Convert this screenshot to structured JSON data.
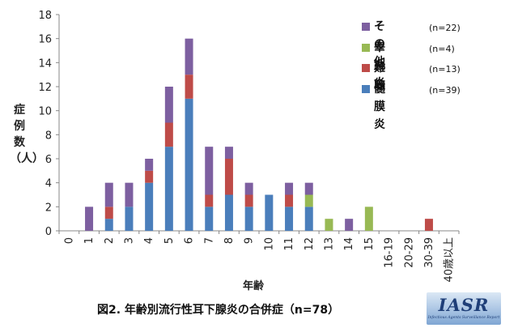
{
  "chart_data": {
    "type": "bar",
    "stacked": true,
    "categories": [
      "0",
      "1",
      "2",
      "3",
      "4",
      "5",
      "6",
      "7",
      "8",
      "9",
      "10",
      "11",
      "12",
      "13",
      "14",
      "15",
      "16-19",
      "20-29",
      "30-39",
      "40歳以上"
    ],
    "series": [
      {
        "name": "髄膜炎",
        "count_label": "(n=39)",
        "color": "#4a7ebb",
        "values": [
          0,
          0,
          1,
          2,
          4,
          7,
          11,
          2,
          3,
          2,
          3,
          2,
          2,
          0,
          0,
          0,
          0,
          0,
          0,
          0
        ]
      },
      {
        "name": "難聴",
        "count_label": "(n=13)",
        "color": "#be4b48",
        "values": [
          0,
          0,
          1,
          0,
          1,
          2,
          2,
          1,
          3,
          1,
          0,
          1,
          0,
          0,
          0,
          0,
          0,
          0,
          1,
          0
        ]
      },
      {
        "name": "睾丸炎",
        "count_label": "(n=4)",
        "color": "#98b954",
        "values": [
          0,
          0,
          0,
          0,
          0,
          0,
          0,
          0,
          0,
          0,
          0,
          0,
          1,
          1,
          0,
          2,
          0,
          0,
          0,
          0
        ]
      },
      {
        "name": "その他",
        "count_label": "(n=22)",
        "color": "#7d5fa0",
        "values": [
          0,
          2,
          2,
          2,
          1,
          3,
          3,
          4,
          1,
          1,
          0,
          1,
          1,
          0,
          1,
          0,
          0,
          0,
          0,
          0
        ]
      }
    ],
    "legend_order": [
      "その他",
      "睾丸炎",
      "難聴",
      "髄膜炎"
    ],
    "ylim": [
      0,
      18
    ],
    "yticks": [
      0,
      2,
      4,
      6,
      8,
      10,
      12,
      14,
      16,
      18
    ],
    "ylabel_chars": [
      "症",
      "例",
      "数",
      "（人）"
    ],
    "xlabel": "年齢",
    "grid": false,
    "legend_position": "top-right",
    "title": "図2. 年齢別流行性耳下腺炎の合併症（n=78）"
  },
  "logo": {
    "mark": "IASR",
    "sub": "Infectious Agents Surveillance Report"
  }
}
